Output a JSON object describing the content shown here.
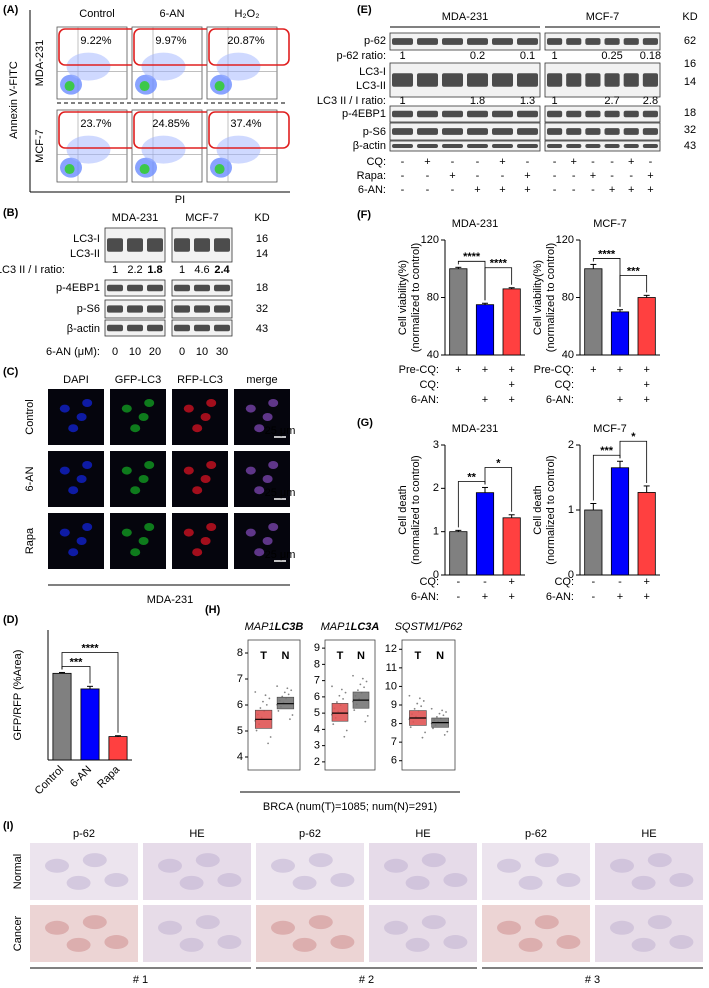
{
  "panel_A": {
    "label": "(A)",
    "columns": [
      "Control",
      "6-AN",
      "H₂O₂"
    ],
    "rows": [
      "MDA-231",
      "MCF-7"
    ],
    "percents": [
      [
        "9.22%",
        "9.97%",
        "20.87%"
      ],
      [
        "23.7%",
        "24.85%",
        "37.4%"
      ]
    ],
    "x_label": "PI",
    "y_label": "Annexin V-FITC"
  },
  "panel_B": {
    "label": "(B)",
    "cell_lines": [
      "MDA-231",
      "MCF-7"
    ],
    "kd_header": "KD",
    "bands": [
      "LC3-I",
      "LC3-II",
      "p-4EBP1",
      "p-S6",
      "β-actin"
    ],
    "kd": [
      "16",
      "14",
      "18",
      "32",
      "43"
    ],
    "ratio_label": "LC3 II / I  ratio:",
    "ratios": [
      "1",
      "2.2",
      "1.8",
      "1",
      "4.6",
      "2.4"
    ],
    "treatment_label": "6-AN (μM):",
    "doses": [
      "0",
      "10",
      "20",
      "0",
      "10",
      "30"
    ]
  },
  "panel_C": {
    "label": "(C)",
    "columns": [
      "DAPI",
      "GFP-LC3",
      "RFP-LC3",
      "merge"
    ],
    "rows": [
      "Control",
      "6-AN",
      "Rapa"
    ],
    "scale_bar": "25 μm",
    "caption": "MDA-231"
  },
  "panel_D": {
    "label": "(D)",
    "type": "bar",
    "y_label": "GFP/RFP (%Area)",
    "categories": [
      "Control",
      "6-AN",
      "Rapa"
    ],
    "values": [
      1.0,
      0.82,
      0.27
    ],
    "errors": [
      0.01,
      0.03,
      0.01
    ],
    "colors": [
      "#808080",
      "#0000ff",
      "#ff4040"
    ],
    "ylim": [
      0,
      1.5
    ],
    "significance": [
      "***",
      "****"
    ]
  },
  "panel_E": {
    "label": "(E)",
    "cell_lines": [
      "MDA-231",
      "MCF-7"
    ],
    "kd_header": "KD",
    "bands": [
      "p-62",
      "LC3-I",
      "LC3-II",
      "p-4EBP1",
      "p-S6",
      "β-actin"
    ],
    "kd": [
      "62",
      "16",
      "14",
      "18",
      "32",
      "43"
    ],
    "p62_ratio_label": "p-62  ratio:",
    "p62_ratios": [
      "1",
      "0.2",
      "0.1",
      "1",
      "0.25",
      "0.18"
    ],
    "lc3_ratio_label": "LC3 II / I  ratio:",
    "lc3_ratios": [
      "1",
      "1.8",
      "1.3",
      "1",
      "2.7",
      "2.8"
    ],
    "treatments": [
      {
        "name": "CQ:",
        "signs": [
          "-",
          "+",
          "-",
          "-",
          "+",
          "-"
        ]
      },
      {
        "name": "Rapa:",
        "signs": [
          "-",
          "-",
          "+",
          "-",
          "-",
          "+"
        ]
      },
      {
        "name": "6-AN:",
        "signs": [
          "-",
          "-",
          "-",
          "+",
          "+",
          "+"
        ]
      }
    ]
  },
  "panel_F": {
    "label": "(F)",
    "colors": [
      "#808080",
      "#0000ff",
      "#ff4040"
    ],
    "charts": [
      {
        "type": "bar",
        "title": "MDA-231",
        "y_label": [
          "Cell viability(%)",
          "(normalized to control)"
        ],
        "values": [
          100,
          75,
          86
        ],
        "errors": [
          1,
          1,
          0.8
        ],
        "ylim": [
          40,
          120
        ],
        "yticks": [
          40,
          80,
          120
        ],
        "significance": [
          "****",
          "****"
        ]
      },
      {
        "type": "bar",
        "title": "MCF-7",
        "y_label": [
          "Cell viability(%)",
          "(normalized to control)"
        ],
        "values": [
          100,
          70,
          80
        ],
        "errors": [
          3,
          1.5,
          1.5
        ],
        "ylim": [
          40,
          120
        ],
        "yticks": [
          40,
          80,
          120
        ],
        "significance": [
          "****",
          "***"
        ]
      }
    ],
    "treatments": [
      {
        "name": "Pre-CQ:",
        "signs": [
          "+",
          "+",
          "+"
        ]
      },
      {
        "name": "CQ:",
        "signs": [
          null,
          null,
          "+"
        ]
      },
      {
        "name": "6-AN:",
        "signs": [
          null,
          "+",
          "+"
        ]
      }
    ]
  },
  "panel_G": {
    "label": "(G)",
    "colors": [
      "#808080",
      "#0000ff",
      "#ff4040"
    ],
    "charts": [
      {
        "type": "bar",
        "title": "MDA-231",
        "y_label": [
          "Cell death",
          "(normalized to control)"
        ],
        "values": [
          1.0,
          1.9,
          1.32
        ],
        "errors": [
          0.03,
          0.12,
          0.07
        ],
        "ylim": [
          0,
          3
        ],
        "yticks": [
          0,
          1,
          2,
          3
        ],
        "significance": [
          "**",
          "*"
        ]
      },
      {
        "type": "bar",
        "title": "MCF-7",
        "y_label": [
          "Cell death",
          "(normalized to control)"
        ],
        "values": [
          1.0,
          1.65,
          1.27
        ],
        "errors": [
          0.1,
          0.1,
          0.1
        ],
        "ylim": [
          0,
          2
        ],
        "yticks": [
          0,
          1,
          2
        ],
        "significance": [
          "***",
          "*"
        ]
      }
    ],
    "treatments": [
      {
        "name": "CQ:",
        "signs": [
          "-",
          "-",
          "+"
        ]
      },
      {
        "name": "6-AN:",
        "signs": [
          "-",
          "+",
          "+"
        ]
      }
    ]
  },
  "panel_H": {
    "label": "(H)",
    "caption": "BRCA (num(T)=1085; num(N)=291)",
    "plots": [
      {
        "type": "box",
        "title_prefix": "MAP1",
        "title_gene": "LC3B",
        "ylim": [
          3.5,
          8.5
        ],
        "yticks": [
          4,
          5,
          6,
          7,
          8
        ],
        "series": [
          {
            "name": "T",
            "color": "#e05555",
            "q1": 5.1,
            "median": 5.45,
            "q3": 5.8
          },
          {
            "name": "N",
            "color": "#777777",
            "q1": 5.85,
            "median": 6.05,
            "q3": 6.3
          }
        ]
      },
      {
        "type": "box",
        "title_prefix": "MAP1",
        "title_gene": "LC3A",
        "ylim": [
          1.5,
          9.5
        ],
        "yticks": [
          2,
          3,
          4,
          5,
          6,
          7,
          8,
          9
        ],
        "series": [
          {
            "name": "T",
            "color": "#e05555",
            "q1": 4.5,
            "median": 5.0,
            "q3": 5.6
          },
          {
            "name": "N",
            "color": "#777777",
            "q1": 5.3,
            "median": 5.8,
            "q3": 6.3
          }
        ]
      },
      {
        "type": "box",
        "title_prefix": "SQSTM1/P62",
        "ylim": [
          5.5,
          12.5
        ],
        "yticks": [
          6,
          7,
          8,
          9,
          10,
          11,
          12
        ],
        "series": [
          {
            "name": "T",
            "color": "#e05555",
            "q1": 7.9,
            "median": 8.3,
            "q3": 8.7
          },
          {
            "name": "N",
            "color": "#777777",
            "q1": 7.8,
            "median": 8.05,
            "q3": 8.3
          }
        ]
      }
    ]
  },
  "panel_I": {
    "label": "(I)",
    "columns": [
      "p-62",
      "HE",
      "p-62",
      "HE",
      "p-62",
      "HE"
    ],
    "rows": [
      "Normal",
      "Cancer"
    ],
    "groups": [
      "# 1",
      "# 2",
      "# 3"
    ]
  }
}
